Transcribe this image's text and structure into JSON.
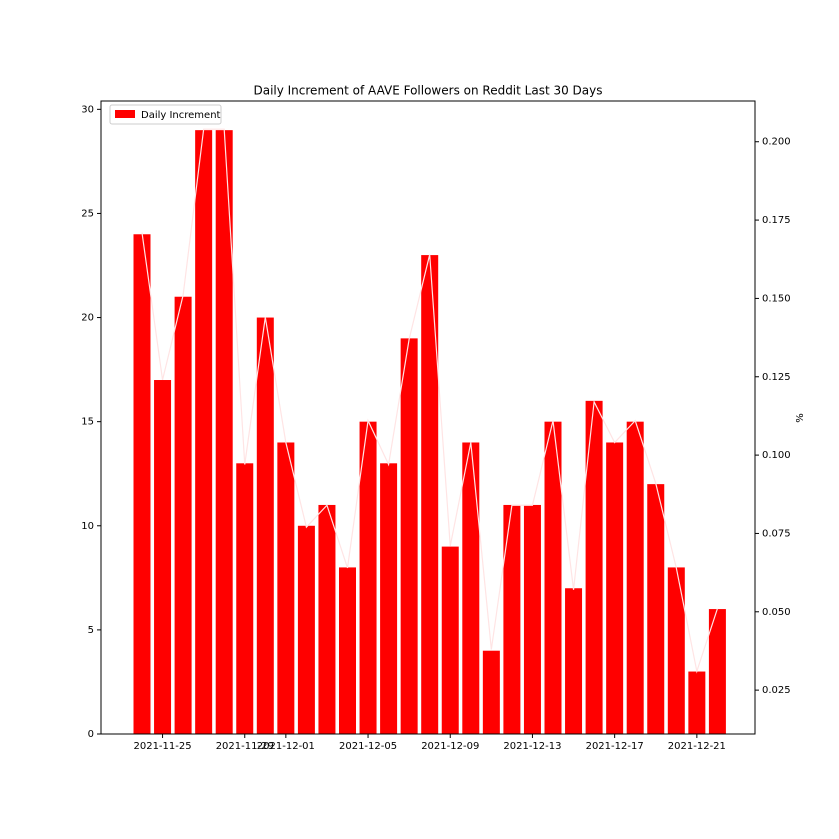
{
  "chart_data": {
    "type": "bar",
    "title": "Daily Increment of AAVE Followers on Reddit Last 30 Days",
    "x": [
      "2021-11-24",
      "2021-11-25",
      "2021-11-26",
      "2021-11-27",
      "2021-11-28",
      "2021-11-29",
      "2021-11-30",
      "2021-12-01",
      "2021-12-02",
      "2021-12-03",
      "2021-12-04",
      "2021-12-05",
      "2021-12-06",
      "2021-12-07",
      "2021-12-08",
      "2021-12-09",
      "2021-12-10",
      "2021-12-11",
      "2021-12-12",
      "2021-12-13",
      "2021-12-14",
      "2021-12-15",
      "2021-12-16",
      "2021-12-17",
      "2021-12-18",
      "2021-12-19",
      "2021-12-20",
      "2021-12-21",
      "2021-12-22"
    ],
    "series": [
      {
        "name": "Daily Increment",
        "color": "#ff0000",
        "values": [
          24,
          17,
          21,
          29,
          29,
          13,
          20,
          14,
          10,
          11,
          8,
          15,
          13,
          19,
          23,
          9,
          14,
          4,
          11,
          11,
          15,
          7,
          16,
          14,
          15,
          12,
          8,
          3,
          6
        ]
      },
      {
        "name": "%",
        "color": "#ffe4e4",
        "axis": "y2",
        "values": [
          0.171,
          0.124,
          0.151,
          0.204,
          0.204,
          0.097,
          0.144,
          0.104,
          0.077,
          0.084,
          0.064,
          0.111,
          0.097,
          0.137,
          0.164,
          0.071,
          0.104,
          0.038,
          0.084,
          0.084,
          0.111,
          0.057,
          0.117,
          0.104,
          0.111,
          0.091,
          0.064,
          0.031,
          0.051
        ]
      }
    ],
    "xticks": [
      "2021-11-25",
      "2021-11-29",
      "2021-12-01",
      "2021-12-05",
      "2021-12-09",
      "2021-12-13",
      "2021-12-17",
      "2021-12-21"
    ],
    "ylim": [
      0,
      30.4
    ],
    "yticks": [
      0,
      5,
      10,
      15,
      20,
      25,
      30
    ],
    "y2lim": [
      0.011,
      0.213
    ],
    "y2ticks": [
      0.025,
      {
        "value": 0.05,
        "label": "0.050"
      },
      0.075,
      {
        "value": 0.1,
        "label": "0.100"
      },
      0.125,
      {
        "value": 0.15,
        "label": "0.150"
      },
      0.175,
      {
        "value": 0.2,
        "label": "0.200"
      }
    ],
    "y2label": "%",
    "legend": "upper left"
  }
}
